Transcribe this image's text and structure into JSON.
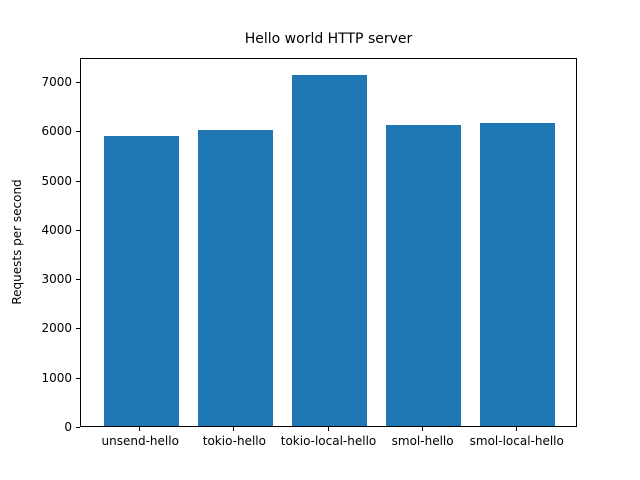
{
  "chart_data": {
    "type": "bar",
    "title": "Hello world HTTP server",
    "xlabel": "",
    "ylabel": "Requests per second",
    "categories": [
      "unsend-hello",
      "tokio-hello",
      "tokio-local-hello",
      "smol-hello",
      "smol-local-hello"
    ],
    "values": [
      5880,
      6010,
      7130,
      6110,
      6160
    ],
    "ylim": [
      0,
      7490
    ],
    "yticks": [
      0,
      1000,
      2000,
      3000,
      4000,
      5000,
      6000,
      7000
    ],
    "grid": false,
    "legend": null,
    "bar_color": "#1f77b4",
    "background_color": "#ffffff",
    "spine_color": "#000000"
  }
}
